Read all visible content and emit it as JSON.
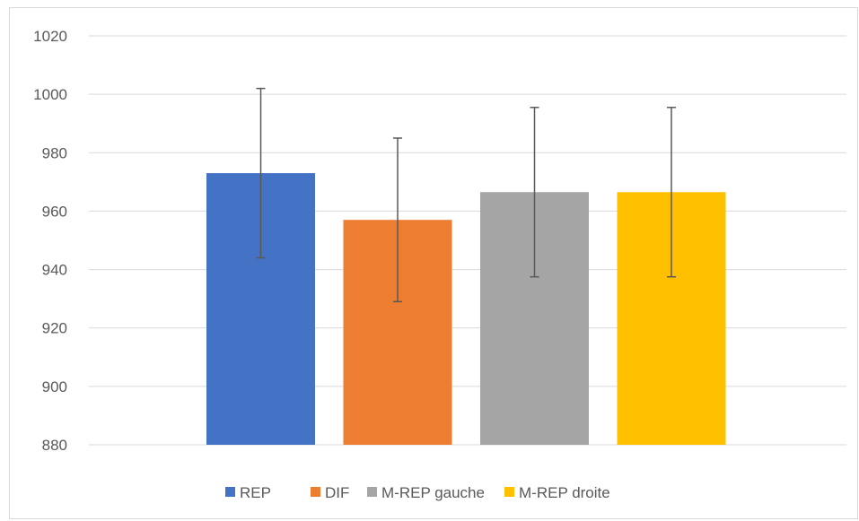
{
  "chart_data": {
    "type": "bar",
    "title": "",
    "xlabel": "",
    "ylabel": "",
    "ylim": [
      880,
      1020
    ],
    "yticks": [
      880,
      900,
      920,
      940,
      960,
      980,
      1000,
      1020
    ],
    "grid": true,
    "legend_position": "bottom",
    "error_bars": true,
    "series": [
      {
        "name": "REP",
        "value": 973,
        "error": 29,
        "color": "#4472C4"
      },
      {
        "name": "DIF",
        "value": 957,
        "error": 28,
        "color": "#ED7D31"
      },
      {
        "name": "M-REP gauche",
        "value": 966.5,
        "error": 29,
        "color": "#A5A5A5"
      },
      {
        "name": "M-REP droite",
        "value": 966.5,
        "error": 29,
        "color": "#FFC000"
      }
    ]
  }
}
